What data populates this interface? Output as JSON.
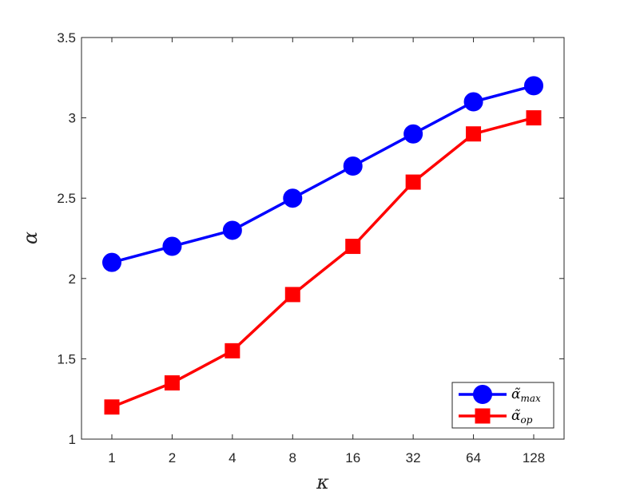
{
  "chart_data": {
    "type": "line",
    "title": "",
    "xlabel": "κ",
    "ylabel": "α",
    "categories": [
      "1",
      "2",
      "4",
      "8",
      "16",
      "32",
      "64",
      "128"
    ],
    "yticks": [
      "1",
      "1.5",
      "2",
      "2.5",
      "3",
      "3.5"
    ],
    "ylim": [
      1,
      3.5
    ],
    "grid": false,
    "legend_position": "bottom-right",
    "series": [
      {
        "name_base": "α̃",
        "name_sub": "max",
        "color": "#0000ff",
        "marker": "circle",
        "values": [
          2.1,
          2.2,
          2.3,
          2.5,
          2.7,
          2.9,
          3.1,
          3.2
        ]
      },
      {
        "name_base": "α̃",
        "name_sub": "op",
        "color": "#ff0000",
        "marker": "square",
        "values": [
          1.2,
          1.35,
          1.55,
          1.9,
          2.2,
          2.6,
          2.9,
          3.0
        ]
      }
    ]
  }
}
